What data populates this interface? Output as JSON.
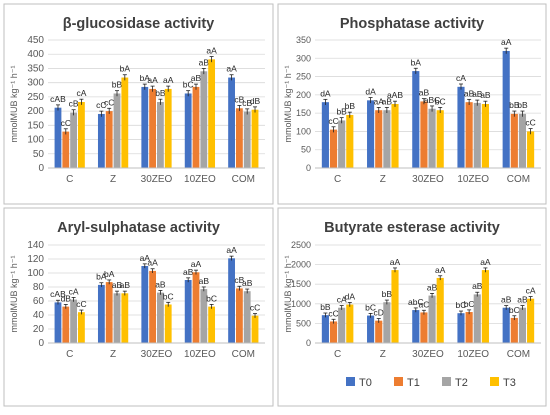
{
  "colors": {
    "T0": "#4472C4",
    "T1": "#ED7D31",
    "T2": "#A5A5A5",
    "T3": "#FFC000",
    "panel_border": "#bfbfbf",
    "grid": "#d9d9d9"
  },
  "legend": {
    "placement": "bottom",
    "items": [
      "T0",
      "T1",
      "T2",
      "T3"
    ]
  },
  "chart_data": [
    {
      "type": "bar",
      "title": "β-glucosidase activity",
      "ylabel": "mmolMUB kg⁻¹ h⁻¹",
      "xlabel": "",
      "categories": [
        "C",
        "Z",
        "30ZEO",
        "10ZEO",
        "COM"
      ],
      "ylim": [
        0,
        450
      ],
      "yticks": [
        0,
        50,
        100,
        150,
        200,
        250,
        300,
        350,
        400,
        450
      ],
      "grid": true,
      "series": [
        {
          "name": "T0",
          "values": [
            212,
            190,
            285,
            262,
            318
          ]
        },
        {
          "name": "T1",
          "values": [
            128,
            200,
            278,
            285,
            210
          ]
        },
        {
          "name": "T2",
          "values": [
            195,
            262,
            232,
            340,
            198
          ]
        },
        {
          "name": "T3",
          "values": [
            232,
            318,
            278,
            382,
            205
          ]
        }
      ],
      "labels": [
        [
          "cAB",
          "cC",
          "cB",
          "cA"
        ],
        [
          "cC",
          "cC",
          "bB",
          "bA"
        ],
        [
          "bA",
          "aA",
          "bB",
          "aA"
        ],
        [
          "bC",
          "aB",
          "aB",
          "aA"
        ],
        [
          "aA",
          "cB",
          "cB",
          "dB"
        ]
      ]
    },
    {
      "type": "bar",
      "title": "Phosphatase activity",
      "ylabel": "mmolMUB kg⁻¹ h⁻¹",
      "xlabel": "",
      "categories": [
        "C",
        "Z",
        "30ZEO",
        "10ZEO",
        "COM"
      ],
      "ylim": [
        0,
        350
      ],
      "yticks": [
        0,
        50,
        100,
        150,
        200,
        250,
        300,
        350
      ],
      "grid": true,
      "series": [
        {
          "name": "T0",
          "values": [
            180,
            185,
            265,
            222,
            320
          ]
        },
        {
          "name": "T1",
          "values": [
            105,
            158,
            182,
            180,
            148
          ]
        },
        {
          "name": "T2",
          "values": [
            130,
            158,
            162,
            178,
            148
          ]
        },
        {
          "name": "T3",
          "values": [
            145,
            175,
            158,
            175,
            100
          ]
        }
      ],
      "labels": [
        [
          "dA",
          "cC",
          "bB",
          "bB"
        ],
        [
          "dA",
          "aA",
          "aB",
          "aAB"
        ],
        [
          "bA",
          "aB",
          "aBC",
          "bC"
        ],
        [
          "cA",
          "aB",
          "aB",
          "aB"
        ],
        [
          "aA",
          "bB",
          "bB",
          "cC"
        ]
      ]
    },
    {
      "type": "bar",
      "title": "Aryl-sulphatase activity",
      "ylabel": "mmolMUB kg⁻¹ h⁻¹",
      "xlabel": "",
      "categories": [
        "C",
        "Z",
        "30ZEO",
        "10ZEO",
        "COM"
      ],
      "ylim": [
        0,
        140
      ],
      "yticks": [
        0,
        20,
        40,
        60,
        80,
        100,
        120,
        140
      ],
      "grid": true,
      "series": [
        {
          "name": "T0",
          "values": [
            58,
            83,
            110,
            90,
            121
          ]
        },
        {
          "name": "T1",
          "values": [
            52,
            87,
            103,
            101,
            78
          ]
        },
        {
          "name": "T2",
          "values": [
            62,
            71,
            72,
            77,
            74
          ]
        },
        {
          "name": "T3",
          "values": [
            44,
            71,
            55,
            52,
            39
          ]
        }
      ],
      "labels": [
        [
          "cAB",
          "dB",
          "cA",
          "cC"
        ],
        [
          "bA",
          "bA",
          "aB",
          "aB"
        ],
        [
          "aA",
          "aA",
          "aB",
          "bC"
        ],
        [
          "aB",
          "aA",
          "aB",
          "bC"
        ],
        [
          "aA",
          "cB",
          "aB",
          "cC"
        ]
      ]
    },
    {
      "type": "bar",
      "title": "Butyrate esterase activity",
      "ylabel": "mmolMUB kg⁻¹ h⁻¹",
      "xlabel": "",
      "categories": [
        "C",
        "Z",
        "30ZEO",
        "10ZEO",
        "COM"
      ],
      "ylim": [
        0,
        2500
      ],
      "yticks": [
        0,
        500,
        1000,
        1500,
        2000,
        2500
      ],
      "grid": true,
      "series": [
        {
          "name": "T0",
          "values": [
            710,
            700,
            840,
            760,
            900
          ]
        },
        {
          "name": "T1",
          "values": [
            550,
            570,
            780,
            790,
            640
          ]
        },
        {
          "name": "T2",
          "values": [
            900,
            1040,
            1210,
            1240,
            900
          ]
        },
        {
          "name": "T3",
          "values": [
            980,
            1860,
            1660,
            1860,
            1130
          ]
        }
      ],
      "labels": [
        [
          "bB",
          "cC",
          "cA",
          "dA"
        ],
        [
          "bC",
          "cD",
          "bB",
          "aA"
        ],
        [
          "abC",
          "aC",
          "aB",
          "aA"
        ],
        [
          "bC",
          "bC",
          "aB",
          "aA"
        ],
        [
          "aB",
          "bC",
          "aB",
          "cA"
        ]
      ]
    }
  ]
}
